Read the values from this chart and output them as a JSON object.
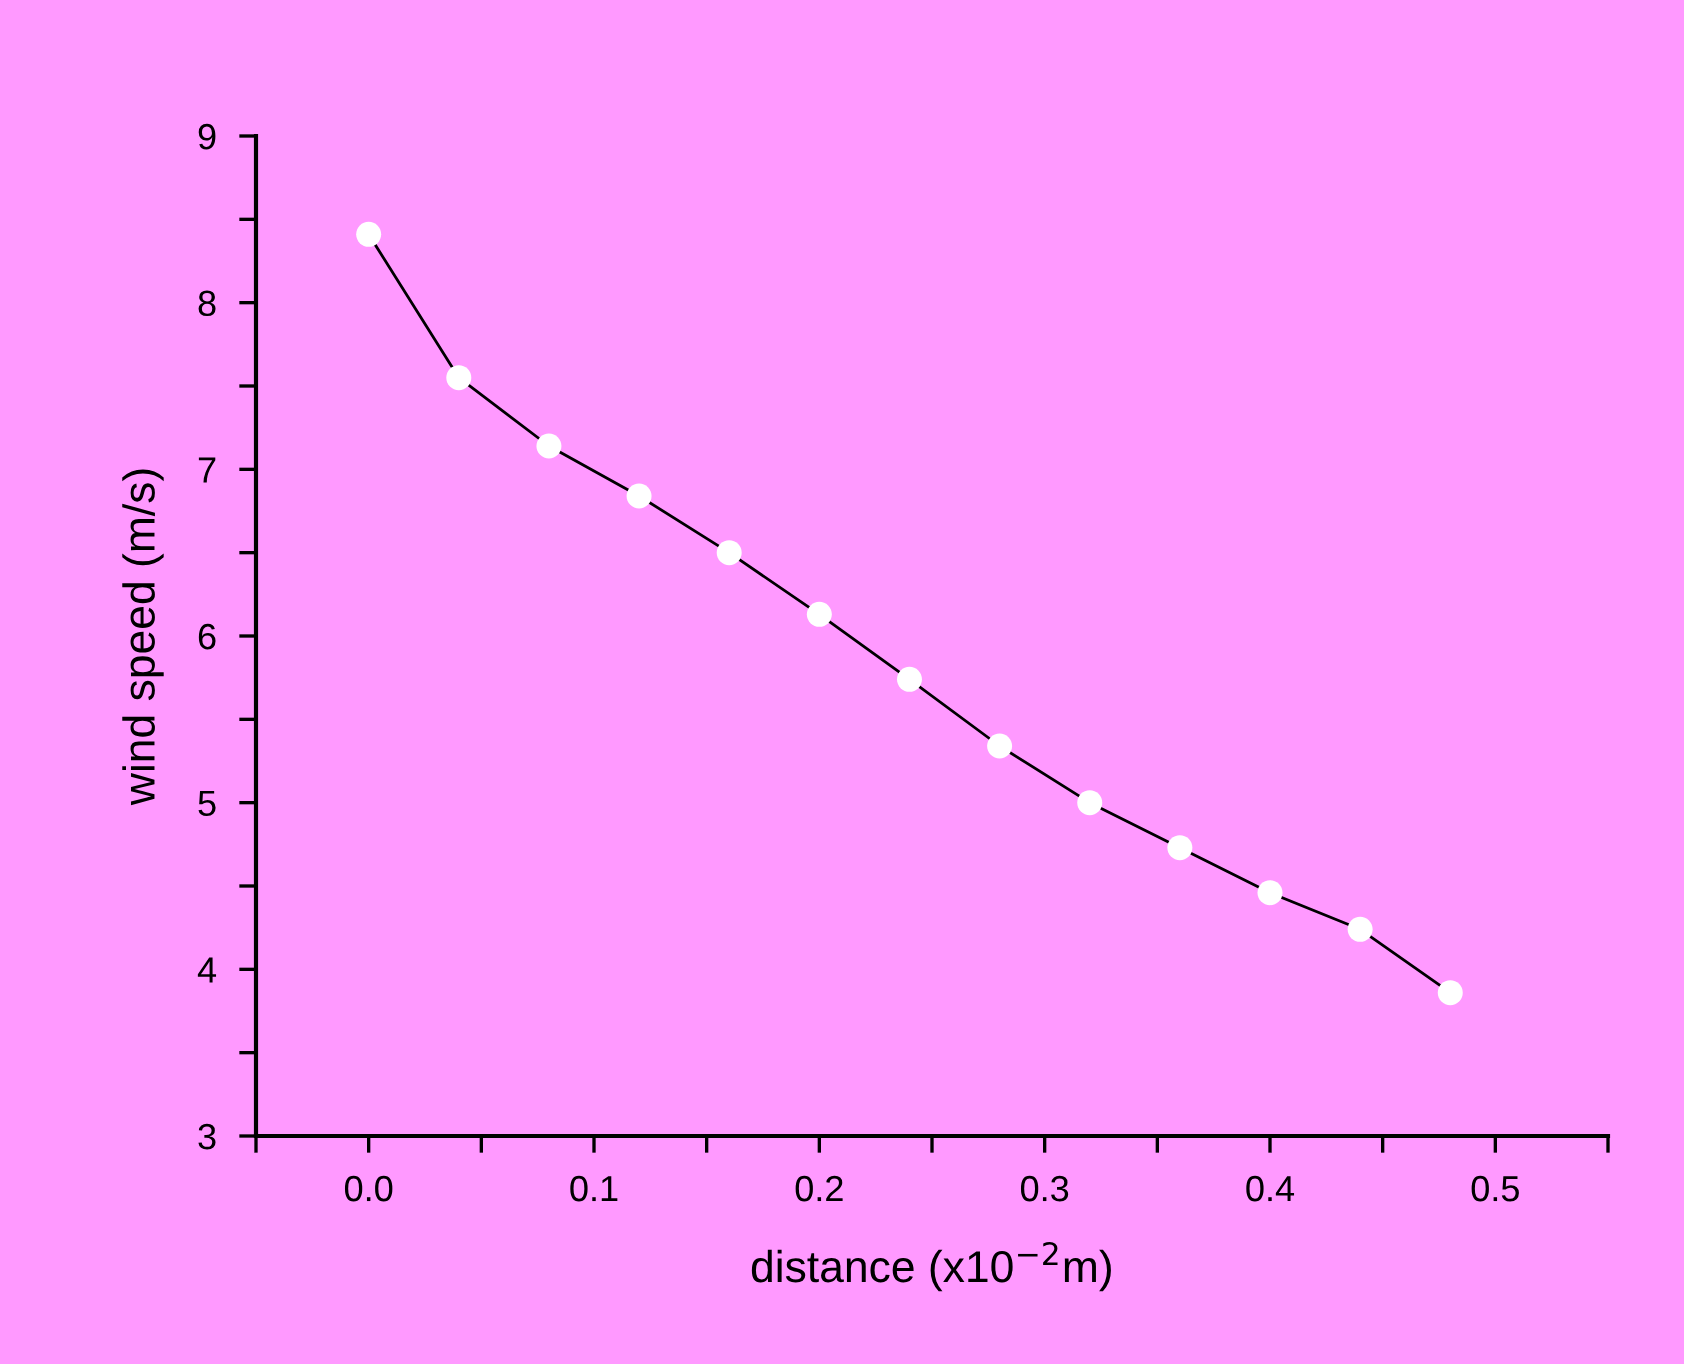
{
  "chart_data": {
    "type": "line",
    "xlabel": "distance (x10$^{−2}$m)",
    "ylabel": "wind speed (m/s)",
    "x": [
      0.0,
      0.04,
      0.08,
      0.12,
      0.16,
      0.2,
      0.24,
      0.28,
      0.32,
      0.36,
      0.4,
      0.44,
      0.48
    ],
    "series": [
      {
        "color": "#000000",
        "values": [
          8.41,
          7.55,
          7.14,
          6.84,
          6.5,
          6.13,
          5.74,
          5.34,
          5.0,
          4.73,
          4.46,
          4.24,
          3.86
        ]
      }
    ],
    "marker": "circle",
    "line_style": "solid",
    "grid": false,
    "legend": false,
    "xlim": [
      -0.05,
      0.55
    ],
    "ylim": [
      3,
      9
    ],
    "xticks": [
      {
        "value": -0.05,
        "label": null
      },
      {
        "value": 0.0,
        "label": "0.0"
      },
      {
        "value": 0.05,
        "label": null
      },
      {
        "value": 0.1,
        "label": "0.1"
      },
      {
        "value": 0.15,
        "label": null
      },
      {
        "value": 0.2,
        "label": "0.2"
      },
      {
        "value": 0.25,
        "label": null
      },
      {
        "value": 0.3,
        "label": "0.3"
      },
      {
        "value": 0.35,
        "label": null
      },
      {
        "value": 0.4,
        "label": "0.4"
      },
      {
        "value": 0.45,
        "label": null
      },
      {
        "value": 0.5,
        "label": "0.5"
      },
      {
        "value": 0.55,
        "label": null
      }
    ],
    "yticks": [
      3,
      {
        "value": 3.5,
        "label": null
      },
      4,
      {
        "value": 4.5,
        "label": null
      },
      5,
      {
        "value": 5.5,
        "label": null
      },
      6,
      {
        "value": 6.5,
        "label": null
      },
      7,
      {
        "value": 7.5,
        "label": null
      },
      8,
      {
        "value": 8.5,
        "label": null
      },
      9
    ]
  }
}
